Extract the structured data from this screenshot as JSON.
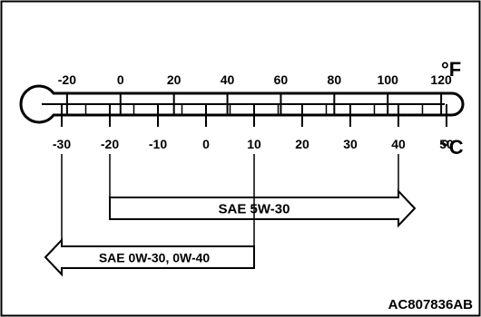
{
  "diagram": {
    "type": "oil-viscosity-temperature-chart",
    "fahrenheit_unit": "°F",
    "celsius_unit": "°C",
    "fahrenheit_ticks": [
      -20,
      0,
      20,
      40,
      60,
      80,
      100,
      120
    ],
    "celsius_ticks": [
      -30,
      -20,
      -10,
      0,
      10,
      20,
      30,
      40,
      50
    ],
    "bands": [
      {
        "label": "SAE 5W-30",
        "from_c": -20,
        "to_c": 40,
        "arrow": "right"
      },
      {
        "label": "SAE 0W-30, 0W-40",
        "from_c": -30,
        "to_c": 10,
        "arrow": "left"
      }
    ],
    "figure_id": "AC807836AB"
  }
}
